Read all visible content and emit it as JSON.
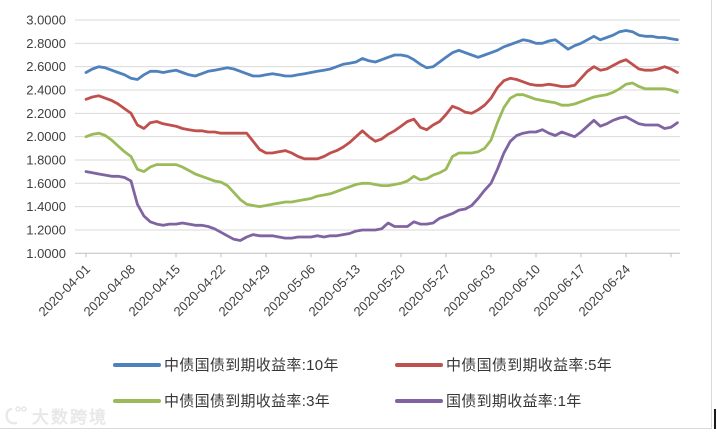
{
  "watermark": {
    "text": "大数跨境"
  },
  "frame": {
    "border_color": "#d9d9d9"
  },
  "chart_data": {
    "type": "line",
    "title": "",
    "xlabel": "",
    "ylabel": "",
    "grid": true,
    "legend_position": "bottom",
    "x_start_date": "2020-04-01",
    "x_tick_interval_days": 7,
    "x_tick_labels": [
      "2020-04-01",
      "2020-04-08",
      "2020-04-15",
      "2020-04-22",
      "2020-04-29",
      "2020-05-06",
      "2020-05-13",
      "2020-05-20",
      "2020-05-27",
      "2020-06-03",
      "2020-06-10",
      "2020-06-17",
      "2020-06-24"
    ],
    "y_axis": {
      "min": 1.0,
      "max": 3.0,
      "step": 0.2,
      "format_decimals": 4
    },
    "y_tick_labels": [
      "3.0000",
      "2.8000",
      "2.6000",
      "2.4000",
      "2.2000",
      "2.0000",
      "1.8000",
      "1.6000",
      "1.4000",
      "1.2000",
      "1.0000"
    ],
    "axis_text_color": "#404040",
    "gridline_color": "#d9d9d9",
    "axis_line_color": "#bfbfbf",
    "series": [
      {
        "name": "中债国债到期收益率:10年",
        "color": "#4F81BD",
        "values": [
          2.55,
          2.58,
          2.6,
          2.59,
          2.57,
          2.55,
          2.53,
          2.5,
          2.49,
          2.53,
          2.56,
          2.56,
          2.55,
          2.56,
          2.57,
          2.55,
          2.53,
          2.52,
          2.54,
          2.56,
          2.57,
          2.58,
          2.59,
          2.58,
          2.56,
          2.54,
          2.52,
          2.52,
          2.53,
          2.54,
          2.53,
          2.52,
          2.52,
          2.53,
          2.54,
          2.55,
          2.56,
          2.57,
          2.58,
          2.6,
          2.62,
          2.63,
          2.64,
          2.67,
          2.65,
          2.64,
          2.66,
          2.68,
          2.7,
          2.7,
          2.69,
          2.66,
          2.62,
          2.59,
          2.6,
          2.64,
          2.68,
          2.72,
          2.74,
          2.72,
          2.7,
          2.68,
          2.7,
          2.72,
          2.74,
          2.77,
          2.79,
          2.81,
          2.83,
          2.82,
          2.8,
          2.8,
          2.82,
          2.83,
          2.79,
          2.75,
          2.78,
          2.8,
          2.83,
          2.86,
          2.83,
          2.85,
          2.87,
          2.9,
          2.91,
          2.9,
          2.87,
          2.86,
          2.86,
          2.85,
          2.85,
          2.84,
          2.83
        ]
      },
      {
        "name": "中债国债到期收益率:5年",
        "color": "#C0504D",
        "values": [
          2.32,
          2.34,
          2.35,
          2.33,
          2.31,
          2.28,
          2.24,
          2.2,
          2.1,
          2.07,
          2.12,
          2.13,
          2.11,
          2.1,
          2.09,
          2.07,
          2.06,
          2.05,
          2.05,
          2.04,
          2.04,
          2.03,
          2.03,
          2.03,
          2.03,
          2.03,
          1.96,
          1.89,
          1.86,
          1.86,
          1.87,
          1.88,
          1.86,
          1.83,
          1.81,
          1.81,
          1.81,
          1.83,
          1.86,
          1.88,
          1.91,
          1.95,
          2.0,
          2.05,
          2.0,
          1.96,
          1.98,
          2.02,
          2.05,
          2.09,
          2.13,
          2.15,
          2.08,
          2.06,
          2.1,
          2.13,
          2.19,
          2.26,
          2.24,
          2.21,
          2.2,
          2.23,
          2.27,
          2.33,
          2.42,
          2.48,
          2.5,
          2.49,
          2.47,
          2.45,
          2.44,
          2.44,
          2.45,
          2.44,
          2.43,
          2.43,
          2.44,
          2.5,
          2.56,
          2.6,
          2.57,
          2.58,
          2.61,
          2.64,
          2.66,
          2.62,
          2.58,
          2.57,
          2.57,
          2.58,
          2.6,
          2.58,
          2.55
        ]
      },
      {
        "name": "中债国债到期收益率:3年",
        "color": "#9BBB59",
        "values": [
          2.0,
          2.02,
          2.03,
          2.01,
          1.97,
          1.92,
          1.87,
          1.83,
          1.72,
          1.7,
          1.74,
          1.76,
          1.76,
          1.76,
          1.76,
          1.74,
          1.71,
          1.68,
          1.66,
          1.64,
          1.62,
          1.61,
          1.58,
          1.52,
          1.46,
          1.42,
          1.41,
          1.4,
          1.41,
          1.42,
          1.43,
          1.44,
          1.44,
          1.45,
          1.46,
          1.47,
          1.49,
          1.5,
          1.51,
          1.53,
          1.55,
          1.57,
          1.59,
          1.6,
          1.6,
          1.59,
          1.58,
          1.58,
          1.59,
          1.6,
          1.62,
          1.66,
          1.63,
          1.64,
          1.67,
          1.69,
          1.72,
          1.83,
          1.86,
          1.86,
          1.86,
          1.87,
          1.9,
          1.97,
          2.12,
          2.25,
          2.33,
          2.36,
          2.36,
          2.34,
          2.32,
          2.31,
          2.3,
          2.29,
          2.27,
          2.27,
          2.28,
          2.3,
          2.32,
          2.34,
          2.35,
          2.36,
          2.38,
          2.41,
          2.45,
          2.46,
          2.43,
          2.41,
          2.41,
          2.41,
          2.41,
          2.4,
          2.38
        ]
      },
      {
        "name": "国债到期收益率:1年",
        "color": "#8064A2",
        "values": [
          1.7,
          1.69,
          1.68,
          1.67,
          1.66,
          1.66,
          1.65,
          1.62,
          1.42,
          1.32,
          1.27,
          1.25,
          1.24,
          1.25,
          1.25,
          1.26,
          1.25,
          1.24,
          1.24,
          1.23,
          1.21,
          1.18,
          1.15,
          1.12,
          1.11,
          1.14,
          1.16,
          1.15,
          1.15,
          1.15,
          1.14,
          1.13,
          1.13,
          1.14,
          1.14,
          1.14,
          1.15,
          1.14,
          1.15,
          1.15,
          1.16,
          1.17,
          1.19,
          1.2,
          1.2,
          1.2,
          1.21,
          1.26,
          1.23,
          1.23,
          1.23,
          1.27,
          1.25,
          1.25,
          1.26,
          1.3,
          1.32,
          1.34,
          1.37,
          1.38,
          1.41,
          1.47,
          1.54,
          1.6,
          1.72,
          1.86,
          1.96,
          2.01,
          2.03,
          2.04,
          2.04,
          2.06,
          2.03,
          2.01,
          2.04,
          2.02,
          2.0,
          2.04,
          2.09,
          2.14,
          2.09,
          2.11,
          2.14,
          2.16,
          2.17,
          2.14,
          2.11,
          2.1,
          2.1,
          2.1,
          2.07,
          2.08,
          2.12
        ]
      }
    ]
  }
}
